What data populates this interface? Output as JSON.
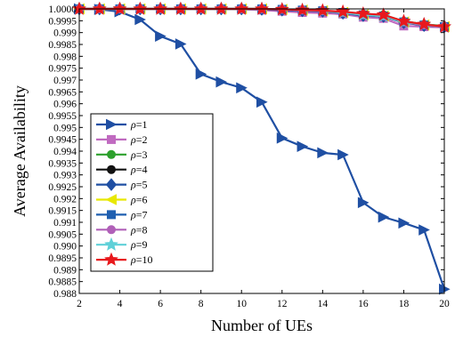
{
  "chart_data": {
    "type": "line",
    "xlabel": "Number of UEs",
    "ylabel": "Average Availability",
    "xlim": [
      2,
      20
    ],
    "ylim": [
      0.988,
      1.0
    ],
    "xticks": [
      "2",
      "4",
      "6",
      "8",
      "10",
      "12",
      "14",
      "16",
      "18",
      "20"
    ],
    "xtick_values": [
      2,
      4,
      6,
      8,
      10,
      12,
      14,
      16,
      18,
      20
    ],
    "yticks": [
      "0.988",
      "0.9885",
      "0.989",
      "0.9895",
      "0.990",
      "0.9905",
      "0.991",
      "0.9915",
      "0.992",
      "0.9925",
      "0.993",
      "0.9935",
      "0.994",
      "0.9945",
      "0.995",
      "0.9955",
      "0.996",
      "0.9965",
      "0.997",
      "0.9975",
      "0.998",
      "0.9985",
      "0.999",
      "0.9995",
      "1.0000"
    ],
    "ytick_values": [
      0.988,
      0.9885,
      0.989,
      0.9895,
      0.99,
      0.9905,
      0.991,
      0.9915,
      0.992,
      0.9925,
      0.993,
      0.9935,
      0.994,
      0.9945,
      0.995,
      0.9955,
      0.996,
      0.9965,
      0.997,
      0.9975,
      0.998,
      0.9985,
      0.999,
      0.9995,
      1.0
    ],
    "grid": false,
    "legend_position": "lower-left",
    "x": [
      2,
      3,
      4,
      5,
      6,
      7,
      8,
      9,
      10,
      11,
      12,
      13,
      14,
      15,
      16,
      17,
      18,
      19,
      20
    ],
    "series": [
      {
        "name": "ρ=1",
        "var": "ρ",
        "suffix": "=1",
        "color": "#1f4fa3",
        "marker": "triangle-right",
        "values": [
          1.0,
          0.99998,
          0.99988,
          0.99955,
          0.99885,
          0.99852,
          0.99725,
          0.99692,
          0.99667,
          0.99607,
          0.99455,
          0.9942,
          0.99393,
          0.99385,
          0.99183,
          0.99122,
          0.99097,
          0.99068,
          0.98818
        ]
      },
      {
        "name": "ρ=2",
        "var": "ρ",
        "suffix": "=2",
        "color": "#c06ac0",
        "marker": "square",
        "values": [
          1.0,
          1.0,
          1.0,
          1.0,
          1.0,
          1.0,
          1.0,
          1.0,
          0.99998,
          0.99995,
          0.9999,
          0.99985,
          0.99982,
          0.99978,
          0.99965,
          0.9996,
          0.99928,
          0.99925,
          0.99922
        ]
      },
      {
        "name": "ρ=3",
        "var": "ρ",
        "suffix": "=3",
        "color": "#2ca02c",
        "marker": "circle",
        "values": [
          1.0,
          1.0,
          1.0,
          1.0,
          1.0,
          1.0,
          1.0,
          1.0,
          1.0,
          1.0,
          0.99998,
          0.99995,
          0.99992,
          0.99985,
          0.99978,
          0.99975,
          0.99948,
          0.99935,
          0.99928
        ]
      },
      {
        "name": "ρ=4",
        "var": "ρ",
        "suffix": "=4",
        "color": "#111111",
        "marker": "circle",
        "values": [
          1.0,
          1.0,
          1.0,
          1.0,
          1.0,
          1.0,
          1.0,
          1.0,
          1.0,
          1.0,
          0.99998,
          0.99995,
          0.99992,
          0.99985,
          0.99975,
          0.99972,
          0.99945,
          0.99932,
          0.99925
        ]
      },
      {
        "name": "ρ=5",
        "var": "ρ",
        "suffix": "=5",
        "color": "#1f4fa3",
        "marker": "diamond",
        "values": [
          1.0,
          1.0,
          1.0,
          1.0,
          1.0,
          1.0,
          1.0,
          1.0,
          1.0,
          0.99998,
          0.99995,
          0.99992,
          0.9999,
          0.99982,
          0.99972,
          0.99968,
          0.99942,
          0.9993,
          0.99925
        ]
      },
      {
        "name": "ρ=6",
        "var": "ρ",
        "suffix": "=6",
        "color": "#e8e800",
        "marker": "triangle-left",
        "values": [
          1.0,
          1.0,
          1.0,
          1.0,
          1.0,
          1.0,
          1.0,
          1.0,
          1.0,
          1.0,
          0.99998,
          0.99995,
          0.99992,
          0.99985,
          0.99975,
          0.9997,
          0.99945,
          0.99932,
          0.99925
        ]
      },
      {
        "name": "ρ=7",
        "var": "ρ",
        "suffix": "=7",
        "color": "#1f5fb0",
        "marker": "square",
        "values": [
          1.0,
          1.0,
          1.0,
          1.0,
          1.0,
          1.0,
          1.0,
          1.0,
          1.0,
          1.0,
          0.99998,
          0.99995,
          0.99992,
          0.99985,
          0.99975,
          0.9997,
          0.99945,
          0.99932,
          0.99925
        ]
      },
      {
        "name": "ρ=8",
        "var": "ρ",
        "suffix": "=8",
        "color": "#b060b8",
        "marker": "circle",
        "values": [
          1.0,
          1.0,
          1.0,
          1.0,
          1.0,
          1.0,
          1.0,
          1.0,
          1.0,
          1.0,
          0.99998,
          0.99995,
          0.99992,
          0.99985,
          0.99975,
          0.9997,
          0.99945,
          0.99932,
          0.99925
        ]
      },
      {
        "name": "ρ=9",
        "var": "ρ",
        "suffix": "=9",
        "color": "#5fd0d8",
        "marker": "star",
        "values": [
          1.0,
          1.0,
          1.0,
          1.0,
          1.0,
          1.0,
          1.0,
          1.0,
          1.0,
          1.0,
          0.99998,
          0.99995,
          0.99992,
          0.99985,
          0.99975,
          0.9997,
          0.99945,
          0.99935,
          0.99925
        ]
      },
      {
        "name": "ρ=10",
        "var": "ρ",
        "suffix": "=10",
        "color": "#e8191d",
        "marker": "star",
        "values": [
          1.0,
          1.0,
          1.0,
          1.0,
          1.0,
          1.0,
          1.0,
          1.0,
          1.0,
          1.0,
          0.99998,
          0.99995,
          0.99993,
          0.99988,
          0.9998,
          0.99975,
          0.99948,
          0.99935,
          0.99925
        ]
      }
    ]
  }
}
